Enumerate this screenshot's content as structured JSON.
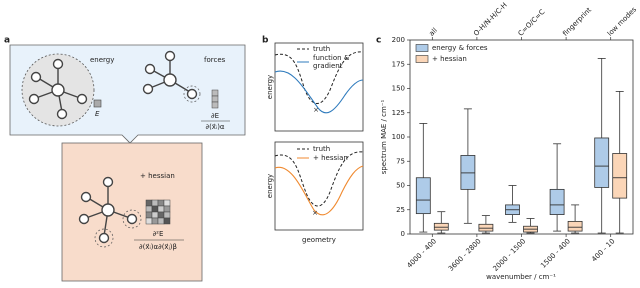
{
  "figure": {
    "a": {
      "label": "a",
      "energy": "energy",
      "forces": "forces",
      "e_symbol": "E",
      "grad_num": "∂E",
      "grad_den": "∂(x⃗ᵢ)α",
      "hessian": "+ hessian",
      "hess_num": "∂²E",
      "hess_den": "∂(x⃗ᵢ)α∂(x⃗ⱼ)β"
    },
    "b": {
      "label": "b",
      "top_truth": "truth",
      "top_fit_1": "function &",
      "top_fit_2": "gradient",
      "top_ylabel": "energy",
      "bottom_truth": "truth",
      "bottom_fit": "+ hessian",
      "bottom_ylabel": "energy",
      "xlabel": "geometry"
    },
    "c": {
      "label": "c"
    }
  },
  "chart_data": {
    "type": "box",
    "ylabel": "spectrum MAE / cm⁻¹",
    "xlabel": "wavenumber / cm⁻¹",
    "categories": [
      "4000 - 400",
      "3600 - 2800",
      "2000 - 1500",
      "1500 - 400",
      "400 - 10"
    ],
    "top_labels": [
      "all",
      "O-H/N-H/C-H",
      "C=O/C=C",
      "fingerprint",
      "low modes"
    ],
    "ylim": [
      0,
      200
    ],
    "yticks": [
      0,
      25,
      50,
      75,
      100,
      125,
      150,
      175,
      200
    ],
    "legend": "upper left",
    "series": [
      {
        "name": "energy & forces",
        "color": "#aecbe8",
        "edge": "#333333",
        "stats": [
          {
            "low": 2,
            "q1": 21,
            "median": 35,
            "q3": 58,
            "high": 114
          },
          {
            "low": 11,
            "q1": 46,
            "median": 63,
            "q3": 81,
            "high": 129
          },
          {
            "low": 12,
            "q1": 20,
            "median": 25,
            "q3": 30,
            "high": 50
          },
          {
            "low": 3,
            "q1": 20,
            "median": 30,
            "q3": 46,
            "high": 93
          },
          {
            "low": 1,
            "q1": 48,
            "median": 70,
            "q3": 99,
            "high": 181
          }
        ]
      },
      {
        "name": "+ hessian",
        "color": "#fbd6b8",
        "edge": "#333333",
        "stats": [
          {
            "low": 1,
            "q1": 4,
            "median": 7,
            "q3": 11,
            "high": 23
          },
          {
            "low": 1,
            "q1": 3,
            "median": 6,
            "q3": 10,
            "high": 19
          },
          {
            "low": 1,
            "q1": 2,
            "median": 5,
            "q3": 8,
            "high": 16
          },
          {
            "low": 1,
            "q1": 3,
            "median": 7,
            "q3": 13,
            "high": 30
          },
          {
            "low": 1,
            "q1": 37,
            "median": 58,
            "q3": 83,
            "high": 147
          }
        ]
      }
    ]
  }
}
